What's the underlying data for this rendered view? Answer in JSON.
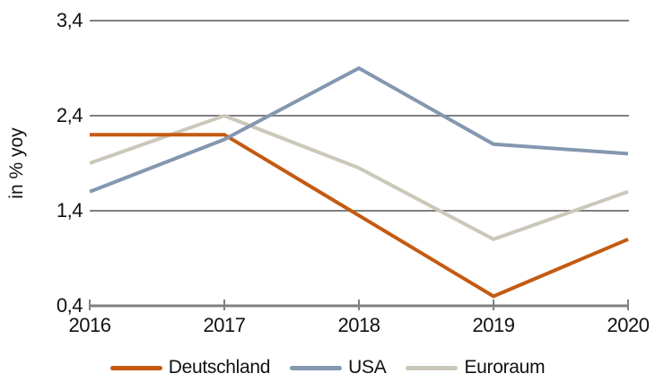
{
  "chart_data": {
    "type": "line",
    "title": "",
    "ylabel": "in % yoy",
    "xlabel": "",
    "x_labels": [
      "2016",
      "2017",
      "2018",
      "2019",
      "2020"
    ],
    "ytick_labels": [
      "0,4",
      "1,4",
      "2,4",
      "3,4"
    ],
    "yticks": [
      0.4,
      1.4,
      2.4,
      3.4
    ],
    "ylim": [
      0.4,
      3.4
    ],
    "grid": "horizontal",
    "legend_position": "bottom",
    "series": [
      {
        "name": "Deutschland",
        "color": "#C45A11",
        "values": [
          2.2,
          2.2,
          1.35,
          0.5,
          1.1
        ]
      },
      {
        "name": "USA",
        "color": "#8497B0",
        "values": [
          1.6,
          2.15,
          2.9,
          2.1,
          2.0
        ]
      },
      {
        "name": "Euroraum",
        "color": "#CBC8BB",
        "values": [
          1.9,
          2.4,
          1.85,
          1.1,
          1.6
        ]
      }
    ],
    "z_order": [
      2,
      0,
      1
    ],
    "axis_color": "#808080",
    "text_color": "#111111",
    "line_width": 4
  }
}
